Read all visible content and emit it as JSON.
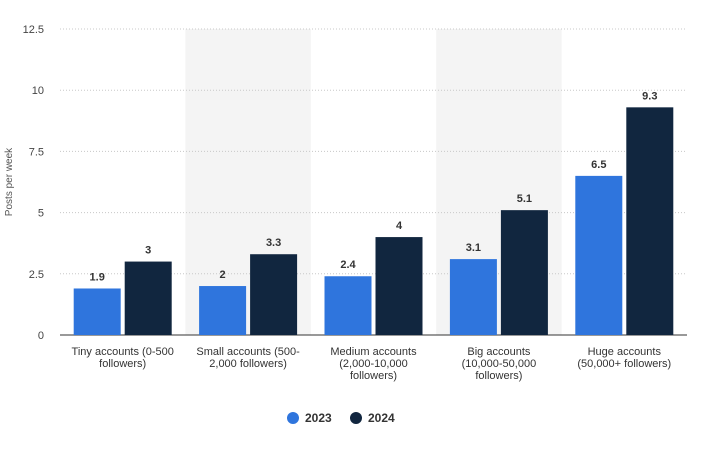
{
  "chart_data": {
    "type": "bar",
    "ylabel": "Posts per week",
    "ylim": [
      0,
      12.5
    ],
    "yticks": [
      "0",
      "2.5",
      "5",
      "7.5",
      "10",
      "12.5"
    ],
    "grid": true,
    "legend_position": "bottom-center",
    "categories": [
      [
        "Tiny accounts (0-500",
        "followers)"
      ],
      [
        "Small accounts (500-",
        "2,000 followers)"
      ],
      [
        "Medium accounts",
        "(2,000-10,000",
        "followers)"
      ],
      [
        "Big accounts",
        "(10,000-50,000",
        "followers)"
      ],
      [
        "Huge accounts",
        "(50,000+ followers)"
      ]
    ],
    "series": [
      {
        "name": "2023",
        "color": "#2f75dd",
        "values": [
          1.9,
          2,
          2.4,
          3.1,
          6.5
        ],
        "labels": [
          "1.9",
          "2",
          "2.4",
          "3.1",
          "6.5"
        ]
      },
      {
        "name": "2024",
        "color": "#11263f",
        "values": [
          3,
          3.3,
          4,
          5.1,
          9.3
        ],
        "labels": [
          "3",
          "3.3",
          "4",
          "5.1",
          "9.3"
        ]
      }
    ],
    "band_color": "#f4f4f4"
  }
}
